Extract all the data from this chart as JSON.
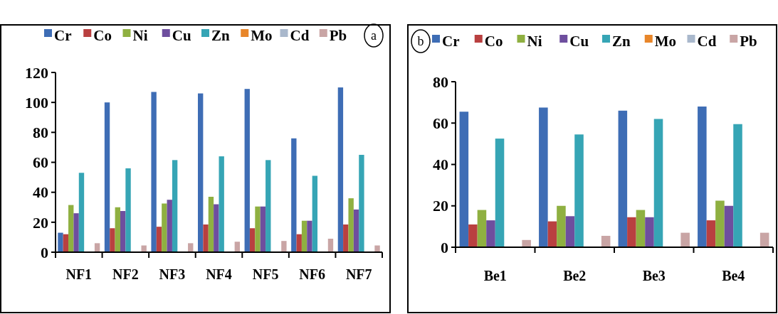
{
  "chart_data": [
    {
      "type": "bar",
      "categories": [
        "NF1",
        "NF2",
        "NF3",
        "NF4",
        "NF5",
        "NF6",
        "NF7"
      ],
      "ylim": [
        0,
        120
      ],
      "yticks": [
        0,
        20,
        40,
        60,
        80,
        100,
        120
      ],
      "legend": "top",
      "grid": false,
      "annotations": [
        "a"
      ],
      "series": [
        {
          "name": "Cr",
          "color": "#3e6db5",
          "values": [
            13,
            100,
            107,
            106,
            109,
            76,
            110
          ]
        },
        {
          "name": "Co",
          "color": "#b94040",
          "values": [
            12,
            16,
            17,
            18.5,
            16,
            12,
            18.5
          ]
        },
        {
          "name": "Ni",
          "color": "#8fb041",
          "values": [
            31.5,
            30,
            32.5,
            37,
            30.5,
            21,
            36
          ]
        },
        {
          "name": "Cu",
          "color": "#6e4e9e",
          "values": [
            26,
            27.5,
            35,
            32,
            30.5,
            21,
            28.5
          ]
        },
        {
          "name": "Zn",
          "color": "#36a5b5",
          "values": [
            53,
            56,
            61.5,
            64,
            61.5,
            51,
            65
          ]
        },
        {
          "name": "Mo",
          "color": "#e8862a",
          "values": [
            0,
            0,
            0,
            0,
            0,
            0,
            0
          ]
        },
        {
          "name": "Cd",
          "color": "#a9b8cc",
          "values": [
            0,
            0,
            0,
            0,
            0,
            0,
            0
          ]
        },
        {
          "name": "Pb",
          "color": "#c9a5a5",
          "values": [
            6,
            4.5,
            6,
            7,
            7.5,
            9,
            4.5
          ]
        }
      ]
    },
    {
      "type": "bar",
      "categories": [
        "Be1",
        "Be2",
        "Be3",
        "Be4"
      ],
      "ylim": [
        0,
        80
      ],
      "yticks": [
        0,
        20,
        40,
        60,
        80
      ],
      "legend": "top",
      "grid": false,
      "annotations": [
        "b"
      ],
      "series": [
        {
          "name": "Cr",
          "color": "#3e6db5",
          "values": [
            65.5,
            67.5,
            66,
            68
          ]
        },
        {
          "name": "Co",
          "color": "#b94040",
          "values": [
            11,
            12.5,
            14.5,
            13
          ]
        },
        {
          "name": "Ni",
          "color": "#8fb041",
          "values": [
            18,
            20,
            18,
            22.5
          ]
        },
        {
          "name": "Cu",
          "color": "#6e4e9e",
          "values": [
            13,
            15,
            14.5,
            20
          ]
        },
        {
          "name": "Zn",
          "color": "#36a5b5",
          "values": [
            52.5,
            54.5,
            62,
            59.5
          ]
        },
        {
          "name": "Mo",
          "color": "#e8862a",
          "values": [
            0,
            0,
            0,
            0
          ]
        },
        {
          "name": "Cd",
          "color": "#a9b8cc",
          "values": [
            0,
            0,
            0,
            0
          ]
        },
        {
          "name": "Pb",
          "color": "#c9a5a5",
          "values": [
            3.5,
            5.5,
            7,
            7
          ]
        }
      ]
    }
  ]
}
